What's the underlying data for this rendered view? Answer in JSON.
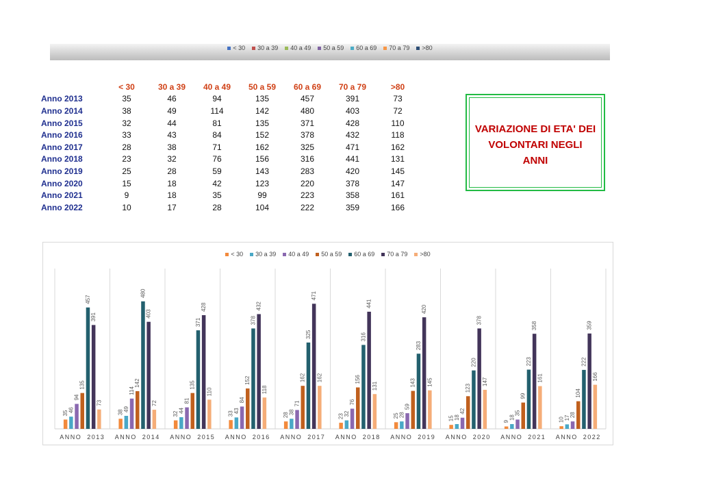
{
  "series_colors": [
    "#f28a3c",
    "#4aa8c6",
    "#8a68b0",
    "#c0601e",
    "#23606e",
    "#43355a",
    "#f5ad78"
  ],
  "top_legend_colors": [
    "#4472c4",
    "#c0504d",
    "#9bbb59",
    "#8064a2",
    "#4bacc6",
    "#f79646",
    "#2c4d75"
  ],
  "table": {
    "headers": [
      "<  30",
      "30 a 39",
      "40 a 49",
      "50 a 59",
      "60 a 69",
      "70 a 79",
      ">80"
    ],
    "rows": [
      {
        "label": "Anno  2013",
        "values": [
          35,
          46,
          94,
          135,
          457,
          391,
          73
        ]
      },
      {
        "label": "Anno  2014",
        "values": [
          38,
          49,
          114,
          142,
          480,
          403,
          72
        ]
      },
      {
        "label": "Anno  2015",
        "values": [
          32,
          44,
          81,
          135,
          371,
          428,
          110
        ]
      },
      {
        "label": "Anno  2016",
        "values": [
          33,
          43,
          84,
          152,
          378,
          432,
          118
        ]
      },
      {
        "label": "Anno  2017",
        "values": [
          28,
          38,
          71,
          162,
          325,
          471,
          162
        ]
      },
      {
        "label": "Anno  2018",
        "values": [
          23,
          32,
          76,
          156,
          316,
          441,
          131
        ]
      },
      {
        "label": "Anno  2019",
        "values": [
          25,
          28,
          59,
          143,
          283,
          420,
          145
        ]
      },
      {
        "label": "Anno  2020",
        "values": [
          15,
          18,
          42,
          123,
          220,
          378,
          147
        ]
      },
      {
        "label": "Anno  2021",
        "values": [
          9,
          18,
          35,
          99,
          223,
          358,
          161
        ]
      },
      {
        "label": "Anno  2022",
        "values": [
          10,
          17,
          28,
          104,
          222,
          359,
          166
        ]
      }
    ]
  },
  "title_box": {
    "text": "VARIAZIONE DI ETA' DEI\nVOLONTARI NEGLI\nANNI"
  },
  "chart_data": {
    "type": "bar",
    "categories": [
      "ANNO  2013",
      "ANNO  2014",
      "ANNO  2015",
      "ANNO  2016",
      "ANNO  2017",
      "ANNO  2018",
      "ANNO  2019",
      "ANNO  2020",
      "ANNO  2021",
      "ANNO  2022"
    ],
    "series": [
      {
        "name": "<  30",
        "values": [
          35,
          38,
          32,
          33,
          28,
          23,
          25,
          15,
          9,
          10
        ]
      },
      {
        "name": "30 a 39",
        "values": [
          46,
          49,
          44,
          43,
          38,
          32,
          28,
          18,
          18,
          17
        ]
      },
      {
        "name": "40 a 49",
        "values": [
          94,
          114,
          81,
          84,
          71,
          76,
          59,
          42,
          35,
          28
        ]
      },
      {
        "name": "50 a 59",
        "values": [
          135,
          142,
          135,
          152,
          162,
          156,
          143,
          123,
          99,
          104
        ]
      },
      {
        "name": "60 a 69",
        "values": [
          457,
          480,
          371,
          378,
          325,
          316,
          283,
          220,
          223,
          222
        ]
      },
      {
        "name": "70 a 79",
        "values": [
          391,
          403,
          428,
          432,
          471,
          441,
          420,
          378,
          358,
          359
        ]
      },
      {
        "name": ">80",
        "values": [
          73,
          72,
          110,
          118,
          162,
          131,
          145,
          147,
          161,
          166
        ]
      }
    ],
    "ylim": [
      0,
      490
    ],
    "legend": "top",
    "grid": false,
    "data_labels": true
  }
}
